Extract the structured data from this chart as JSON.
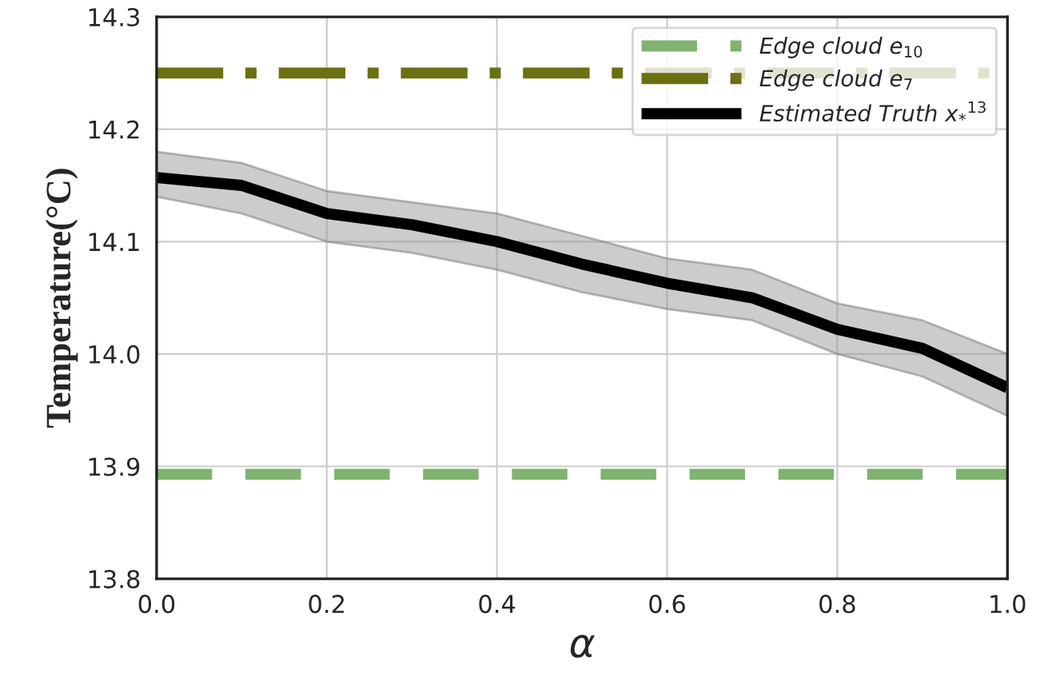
{
  "chart_data": {
    "type": "line",
    "xlabel": "α",
    "ylabel": "Temperature(°C)",
    "xlim": [
      0.0,
      1.0
    ],
    "ylim": [
      13.8,
      14.3
    ],
    "xticks": [
      {
        "value": 0,
        "label": "0.0"
      },
      0.2,
      0.4,
      0.6,
      0.8,
      {
        "value": 1,
        "label": "1.0"
      }
    ],
    "yticks": [
      13.8,
      13.9,
      {
        "value": 14,
        "label": "14.0"
      },
      14.1,
      14.2,
      14.3
    ],
    "grid": true,
    "legend": "top right",
    "series": [
      {
        "name": "Edge cloud e$_{10}$",
        "color": "#7fb36f",
        "line_style": "dashed",
        "x": [
          0,
          1
        ],
        "values": [
          13.893,
          13.893
        ]
      },
      {
        "name": "Edge cloud e$_{7}$",
        "color": "#6b7012",
        "line_style": "dashdot",
        "x": [
          0,
          1
        ],
        "values": [
          14.25,
          14.25
        ]
      },
      {
        "name": "Estimated Truth x$_{*}$$^{13}$",
        "color": "#000000",
        "line_style": "solid",
        "x": [
          0,
          0.1,
          0.2,
          0.3,
          0.4,
          0.5,
          0.6,
          0.7,
          0.8,
          0.9,
          1.0
        ],
        "values": [
          14.157,
          14.15,
          14.125,
          14.115,
          14.1,
          14.08,
          14.063,
          14.05,
          14.022,
          14.005,
          13.97
        ],
        "upper": [
          14.18,
          14.17,
          14.145,
          14.135,
          14.125,
          14.105,
          14.085,
          14.075,
          14.045,
          14.03,
          14.0
        ],
        "lower": [
          14.14,
          14.125,
          14.1,
          14.09,
          14.075,
          14.055,
          14.04,
          14.03,
          14.0,
          13.98,
          13.945
        ]
      }
    ]
  }
}
